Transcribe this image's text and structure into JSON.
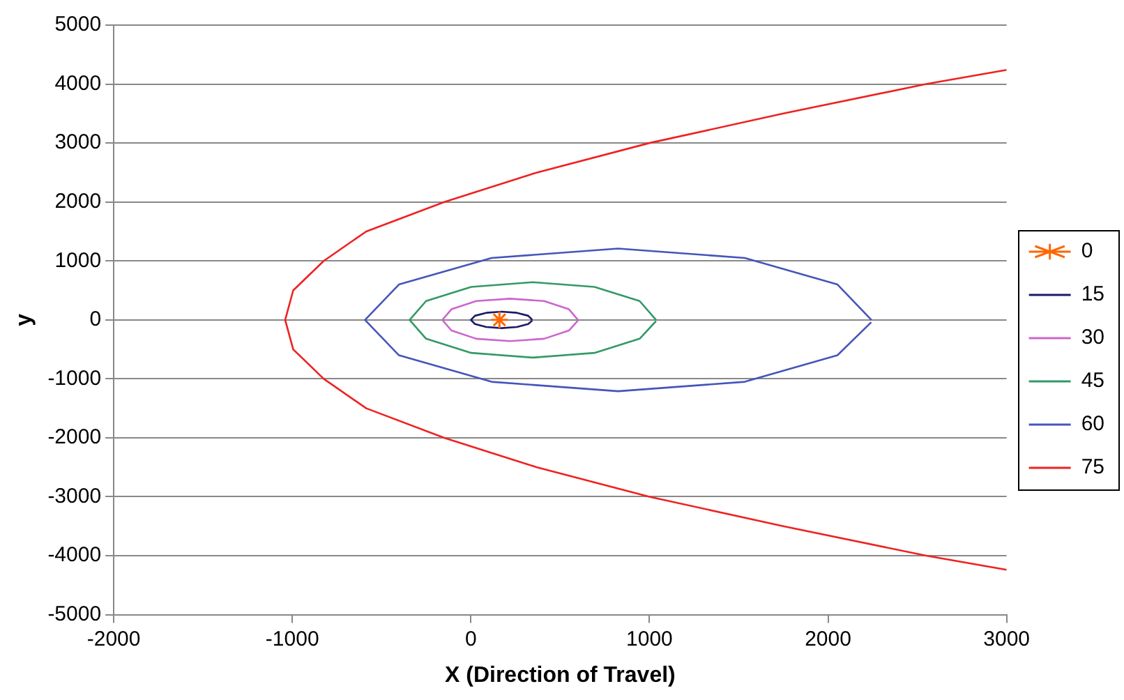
{
  "chart_data": {
    "type": "line",
    "xlabel": "X (Direction of Travel)",
    "ylabel": "y",
    "xlim": [
      -2000,
      3000
    ],
    "xticks": [
      -2000,
      -1000,
      0,
      1000,
      2000,
      3000
    ],
    "ylim": [
      -5000,
      5000
    ],
    "yticks": [
      -5000,
      -4000,
      -3000,
      -2000,
      -1000,
      0,
      1000,
      2000,
      3000,
      4000,
      5000
    ],
    "grid": "y",
    "legend": "right",
    "line_style": "solid",
    "series": [
      {
        "name": "0",
        "type": "scatter",
        "marker": "cross",
        "color": "#ff6600",
        "x": [
          160
        ],
        "values": [
          0
        ]
      },
      {
        "name": "15",
        "marker": "none",
        "color": "#1a1a66",
        "x": [
          344,
          321,
          258,
          172,
          86,
          23,
          0,
          23,
          86,
          172,
          258,
          321,
          344
        ],
        "values": [
          0,
          70,
          120,
          140,
          120,
          70,
          0,
          -70,
          -120,
          -140,
          -120,
          -70,
          -10
        ]
      },
      {
        "name": "30",
        "marker": "none",
        "color": "#cc66cc",
        "x": [
          600,
          549,
          410,
          220,
          30,
          -109,
          -160,
          -109,
          30,
          220,
          410,
          549,
          600
        ],
        "values": [
          0,
          180,
          320,
          360,
          320,
          180,
          0,
          -180,
          -320,
          -360,
          -320,
          -180,
          -10
        ]
      },
      {
        "name": "45",
        "marker": "none",
        "color": "#339966",
        "x": [
          1037,
          945,
          692,
          347,
          2,
          -251,
          -343,
          -251,
          2,
          347,
          692,
          945,
          1037
        ],
        "values": [
          0,
          320,
          560,
          640,
          560,
          320,
          0,
          -320,
          -560,
          -640,
          -560,
          -320,
          -20
        ]
      },
      {
        "name": "60",
        "marker": "none",
        "color": "#4455bb",
        "x": [
          2243,
          2053,
          1534,
          825,
          116,
          -403,
          -593,
          -403,
          116,
          825,
          1534,
          2053,
          2242
        ],
        "values": [
          0,
          600,
          1050,
          1210,
          1050,
          600,
          0,
          -600,
          -1050,
          -1210,
          -1050,
          -600,
          -40
        ]
      },
      {
        "name": "75",
        "marker": "none",
        "color": "#ee2222",
        "x": [
          3000,
          2550,
          1750,
          1000,
          370,
          -149,
          -586,
          -824,
          -995,
          -1040,
          -995,
          -824,
          -586,
          -149,
          370,
          1000,
          1750,
          2550,
          3000
        ],
        "values": [
          4240,
          4000,
          3500,
          3000,
          2500,
          2000,
          1500,
          1000,
          500,
          0,
          -500,
          -1000,
          -1500,
          -2000,
          -2500,
          -3000,
          -3500,
          -4000,
          -4240
        ]
      }
    ]
  }
}
